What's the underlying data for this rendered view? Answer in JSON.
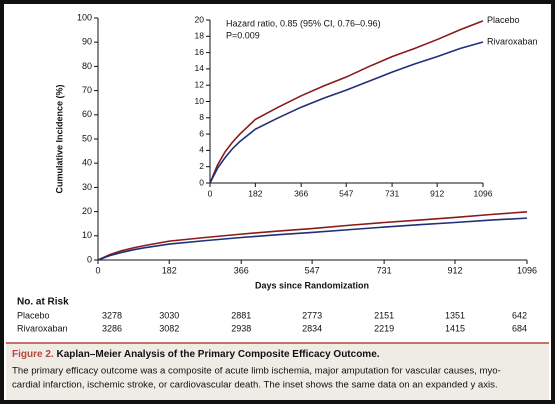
{
  "chart_data": [
    {
      "type": "line",
      "ylabel": "Cumulative Incidence (%)",
      "xlabel": "Days since Randomization",
      "x": [
        0,
        30,
        60,
        90,
        120,
        182,
        274,
        366,
        456,
        547,
        639,
        731,
        821,
        912,
        1004,
        1096
      ],
      "series": [
        {
          "name": "Placebo",
          "color": "#8b1a1a",
          "values": [
            0,
            2.2,
            3.8,
            5.0,
            6.0,
            7.8,
            9.3,
            10.7,
            11.9,
            13.0,
            14.3,
            15.5,
            16.5,
            17.6,
            18.8,
            19.9
          ]
        },
        {
          "name": "Rivaroxaban",
          "color": "#1f2f7a",
          "values": [
            0,
            1.8,
            3.1,
            4.2,
            5.1,
            6.6,
            8.0,
            9.3,
            10.4,
            11.4,
            12.5,
            13.6,
            14.6,
            15.5,
            16.5,
            17.3
          ]
        }
      ],
      "xlim": [
        0,
        1096
      ],
      "xticks": [
        0,
        182,
        366,
        547,
        731,
        912,
        1096
      ],
      "ylim": [
        0,
        100
      ],
      "yticks": [
        0,
        10,
        20,
        30,
        40,
        50,
        60,
        70,
        80,
        90,
        100
      ],
      "risk_table": {
        "title": "No. at Risk",
        "rows": [
          [
            3278,
            3030,
            2881,
            2773,
            2151,
            1351,
            642
          ],
          [
            3286,
            3082,
            2938,
            2834,
            2219,
            1415,
            684
          ]
        ]
      }
    },
    {
      "type": "line",
      "annotations": [
        "Hazard ratio, 0.85 (95% CI, 0.76–0.96)",
        "P=0.009"
      ],
      "legend": "line-end",
      "x": [
        0,
        30,
        60,
        90,
        120,
        182,
        274,
        366,
        456,
        547,
        639,
        731,
        821,
        912,
        1004,
        1096
      ],
      "series": [
        {
          "name": "Placebo",
          "color": "#8b1a1a",
          "values": [
            0,
            2.2,
            3.8,
            5.0,
            6.0,
            7.8,
            9.3,
            10.7,
            11.9,
            13.0,
            14.3,
            15.5,
            16.5,
            17.6,
            18.8,
            19.9
          ]
        },
        {
          "name": "Rivaroxaban",
          "color": "#1f2f7a",
          "values": [
            0,
            1.8,
            3.1,
            4.2,
            5.1,
            6.6,
            8.0,
            9.3,
            10.4,
            11.4,
            12.5,
            13.6,
            14.6,
            15.5,
            16.5,
            17.3
          ]
        }
      ],
      "xlim": [
        0,
        1096
      ],
      "xticks": [
        0,
        182,
        366,
        547,
        731,
        912,
        1096
      ],
      "ylim": [
        0,
        20
      ],
      "yticks": [
        0,
        2,
        4,
        6,
        8,
        10,
        12,
        14,
        16,
        18,
        20
      ]
    }
  ],
  "caption": {
    "label": "Figure 2.",
    "title": "Kaplan–Meier Analysis of the Primary Composite Efficacy Outcome.",
    "lines": [
      "The primary efficacy outcome was a composite of acute limb ischemia, major amputation for vascular causes, myo-",
      "cardial infarction, ischemic stroke, or cardiovascular death. The inset shows the same data on an expanded y axis."
    ]
  }
}
